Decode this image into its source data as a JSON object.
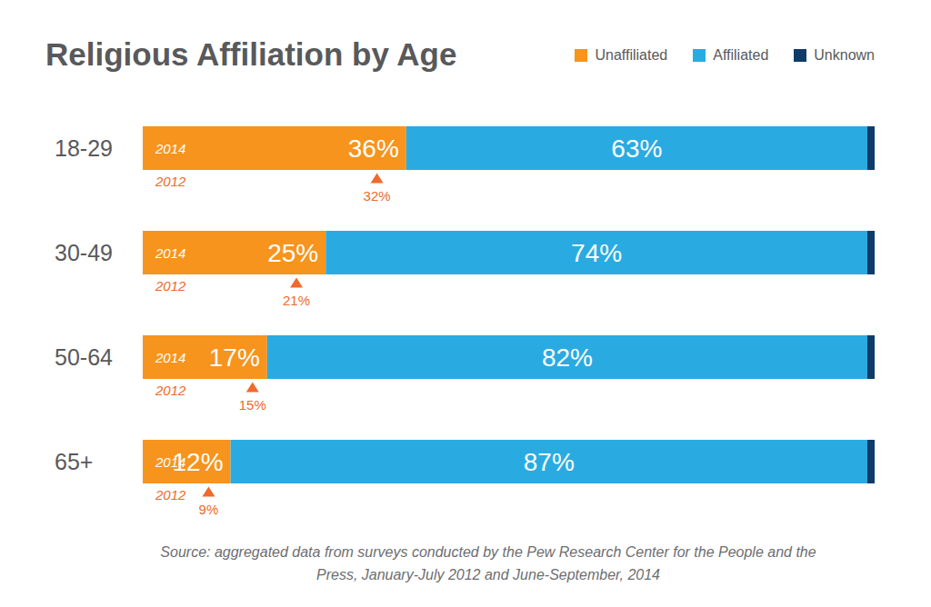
{
  "chart_data": {
    "type": "bar",
    "orientation": "horizontal",
    "stacked": true,
    "data_labels": true,
    "tick_labels": "y",
    "legend": "top right",
    "title": "Religious Affiliation by Age",
    "categories": [
      "18-29",
      "30-49",
      "50-64",
      "65+"
    ],
    "xlim": [
      0,
      100
    ],
    "series": [
      {
        "name": "Unaffiliated",
        "color": "#f7941d",
        "values": [
          36,
          25,
          17,
          12
        ],
        "value_labels": [
          "36%",
          "25%",
          "17%",
          "12%"
        ]
      },
      {
        "name": "Affiliated",
        "color": "#29abe2",
        "values": [
          63,
          74,
          82,
          87
        ],
        "value_labels": [
          "63%",
          "74%",
          "82%",
          "87%"
        ]
      },
      {
        "name": "Unknown",
        "color": "#0d3c6b",
        "values": [
          1,
          1,
          1,
          1
        ]
      }
    ],
    "annotations": {
      "current_label": "2014",
      "previous_label": "2012",
      "previous_values": [
        32,
        21,
        15,
        9
      ],
      "previous_value_labels": [
        "32%",
        "21%",
        "15%",
        "9%"
      ],
      "color": "#ef6a2c"
    },
    "source": "Source: aggregated data from surveys conducted by the Pew Research Center for the People and the Press, January-July 2012 and June-September, 2014"
  }
}
